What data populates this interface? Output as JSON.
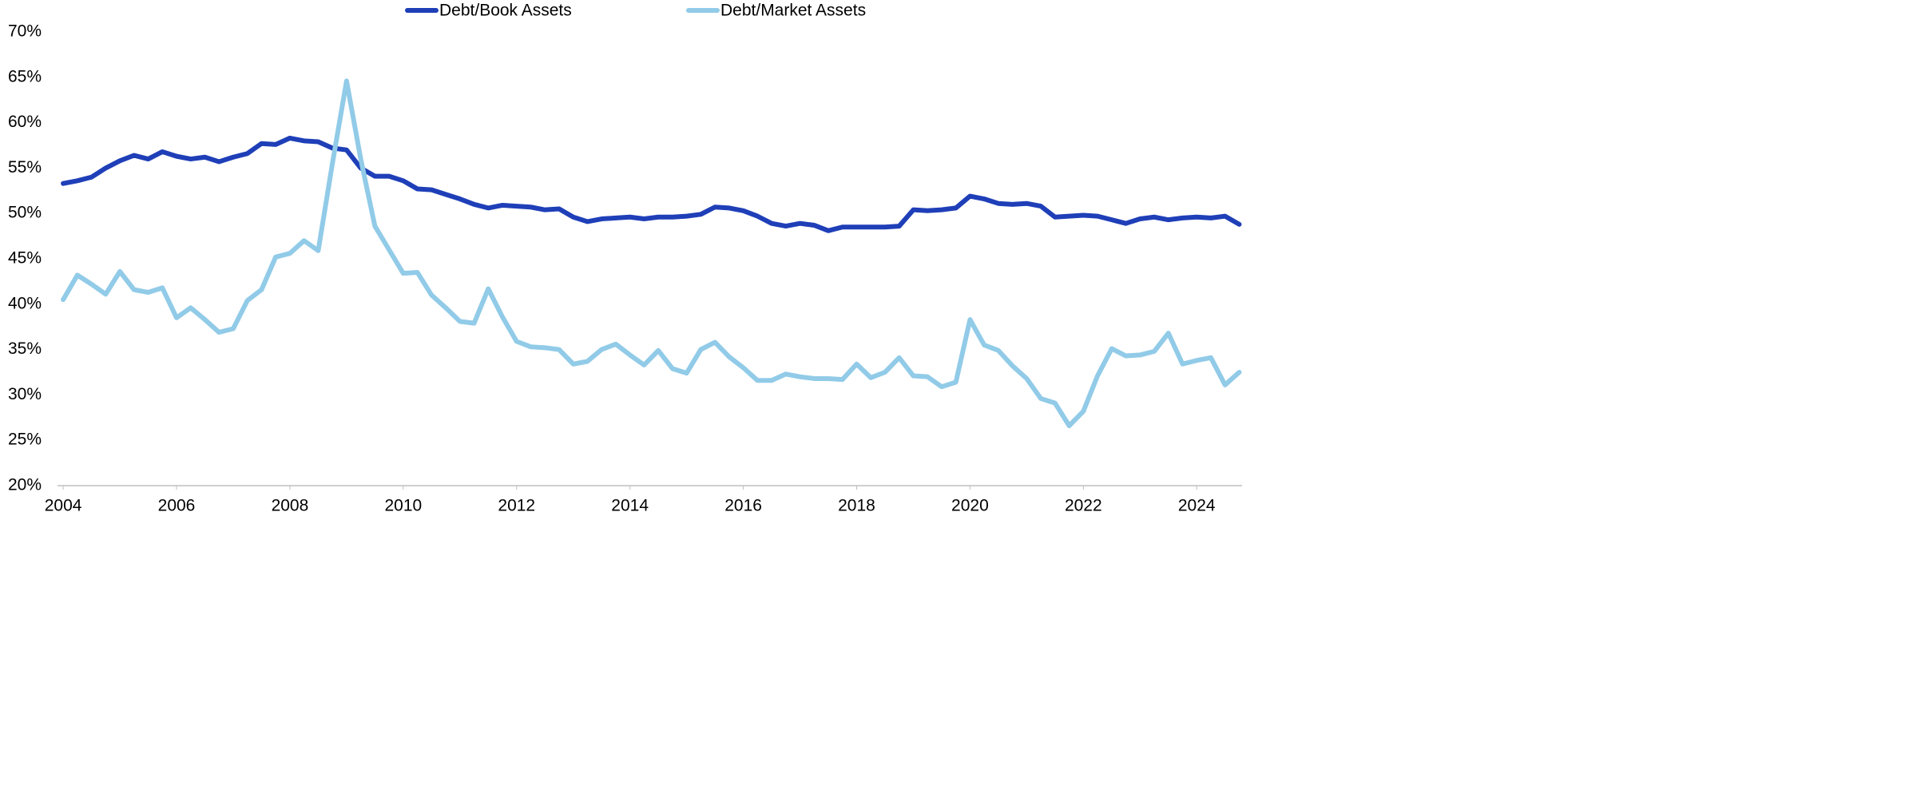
{
  "chart_data": {
    "type": "line",
    "x": [
      2004,
      2004.25,
      2004.5,
      2004.75,
      2005,
      2005.25,
      2005.5,
      2005.75,
      2006,
      2006.25,
      2006.5,
      2006.75,
      2007,
      2007.25,
      2007.5,
      2007.75,
      2008,
      2008.25,
      2008.5,
      2008.75,
      2009,
      2009.25,
      2009.5,
      2009.75,
      2010,
      2010.25,
      2010.5,
      2010.75,
      2011,
      2011.25,
      2011.5,
      2011.75,
      2012,
      2012.25,
      2012.5,
      2012.75,
      2013,
      2013.25,
      2013.5,
      2013.75,
      2014,
      2014.25,
      2014.5,
      2014.75,
      2015,
      2015.25,
      2015.5,
      2015.75,
      2016,
      2016.25,
      2016.5,
      2016.75,
      2017,
      2017.25,
      2017.5,
      2017.75,
      2018,
      2018.25,
      2018.5,
      2018.75,
      2019,
      2019.25,
      2019.5,
      2019.75,
      2020,
      2020.25,
      2020.5,
      2020.75,
      2021,
      2021.25,
      2021.5,
      2021.75,
      2022,
      2022.25,
      2022.5,
      2022.75,
      2023,
      2023.25,
      2023.5,
      2023.75,
      2024,
      2024.25,
      2024.5,
      2024.75
    ],
    "series": [
      {
        "name": "Debt/Book Assets",
        "color": "#1f3fb8",
        "values": [
          53.3,
          53.6,
          54.0,
          55.0,
          55.8,
          56.4,
          56.0,
          56.8,
          56.3,
          56.0,
          56.2,
          55.7,
          56.2,
          56.6,
          57.7,
          57.6,
          58.3,
          58.0,
          57.9,
          57.2,
          57.0,
          55.0,
          54.1,
          54.1,
          53.6,
          52.7,
          52.6,
          52.1,
          51.6,
          51.0,
          50.6,
          50.9,
          50.8,
          50.7,
          50.4,
          50.5,
          49.6,
          49.1,
          49.4,
          49.5,
          49.6,
          49.4,
          49.6,
          49.6,
          49.7,
          49.9,
          50.7,
          50.6,
          50.3,
          49.7,
          48.9,
          48.6,
          48.9,
          48.7,
          48.1,
          48.5,
          48.5,
          48.5,
          48.5,
          48.6,
          50.4,
          50.3,
          50.4,
          50.6,
          51.9,
          51.6,
          51.1,
          51.0,
          51.1,
          50.8,
          49.6,
          49.7,
          49.8,
          49.7,
          49.3,
          48.9,
          49.4,
          49.6,
          49.3,
          49.5,
          49.6,
          49.5,
          49.7,
          48.8
        ]
      },
      {
        "name": "Debt/Market Assets",
        "color": "#91cbe8",
        "values": [
          40.5,
          43.2,
          42.2,
          41.1,
          43.6,
          41.6,
          41.3,
          41.8,
          38.5,
          39.6,
          38.3,
          36.9,
          37.3,
          40.4,
          41.6,
          45.2,
          45.6,
          47.0,
          45.9,
          55.5,
          64.6,
          56.0,
          48.6,
          46.0,
          43.4,
          43.5,
          41.0,
          39.6,
          38.1,
          37.9,
          41.7,
          38.6,
          35.9,
          35.3,
          35.2,
          35.0,
          33.4,
          33.7,
          35.0,
          35.6,
          34.4,
          33.3,
          34.9,
          32.9,
          32.4,
          35.0,
          35.8,
          34.2,
          33.0,
          31.6,
          31.6,
          32.3,
          32.0,
          31.8,
          31.8,
          31.7,
          33.4,
          31.9,
          32.5,
          34.1,
          32.1,
          32.0,
          30.9,
          31.4,
          38.3,
          35.5,
          34.9,
          33.2,
          31.8,
          29.6,
          29.1,
          26.6,
          28.2,
          32.1,
          35.1,
          34.3,
          34.4,
          34.8,
          36.8,
          33.4,
          33.8,
          34.1,
          31.1,
          32.5
        ]
      }
    ],
    "xlim": [
      2003.9,
      2024.8
    ],
    "xticks": [
      2004,
      2006,
      2008,
      2010,
      2012,
      2014,
      2016,
      2018,
      2020,
      2022,
      2024
    ],
    "ylim": [
      20,
      70
    ],
    "yticks": [
      {
        "value": 20,
        "label": "20%"
      },
      {
        "value": 25,
        "label": "25%"
      },
      {
        "value": 30,
        "label": "30%"
      },
      {
        "value": 35,
        "label": "35%"
      },
      {
        "value": 40,
        "label": "40%"
      },
      {
        "value": 45,
        "label": "45%"
      },
      {
        "value": 50,
        "label": "50%"
      },
      {
        "value": 55,
        "label": "55%"
      },
      {
        "value": 60,
        "label": "60%"
      },
      {
        "value": 65,
        "label": "65%"
      },
      {
        "value": 70,
        "label": "70%"
      }
    ],
    "grid": false,
    "legend": "top"
  }
}
